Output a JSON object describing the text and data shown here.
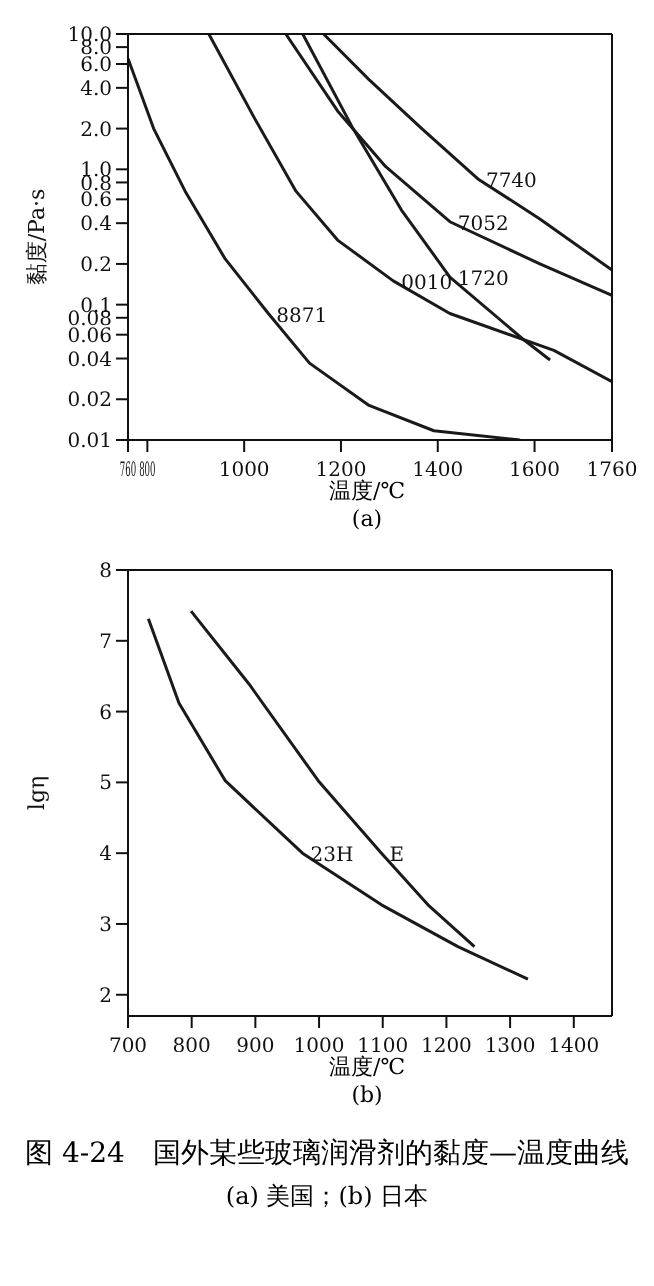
{
  "chart_data": [
    {
      "type": "line",
      "subtitle": "(a)",
      "xlabel": "温度/℃",
      "ylabel": "黏度/Pa·s",
      "log": true,
      "xlim": [
        760,
        1760
      ],
      "ylim": [
        0.01,
        10
      ],
      "xticks": [
        760,
        800,
        1000,
        1200,
        1400,
        1600,
        1760
      ],
      "yticks": [
        0.01,
        0.02,
        0.04,
        0.06,
        0.08,
        0.1,
        0.2,
        0.4,
        {
          "value": 0.6,
          "label": "0.6"
        },
        0.8,
        {
          "value": 1,
          "label": "1.0"
        },
        {
          "value": 2,
          "label": "2.0"
        },
        {
          "value": 4,
          "label": "4.0"
        },
        {
          "value": 6,
          "label": "6.0"
        },
        {
          "value": 8,
          "label": "8.0"
        },
        {
          "value": 10,
          "label": "10.0"
        }
      ],
      "series": [
        {
          "name": "8871",
          "color": "#1a1a1a",
          "x": [
            760,
            813,
            878,
            960,
            1050,
            1135,
            1258,
            1392,
            1570
          ],
          "values": [
            6.6,
            2.0,
            0.69,
            0.22,
            0.086,
            0.037,
            0.018,
            0.0117,
            0.01
          ]
        },
        {
          "name": "0010",
          "color": "#1a1a1a",
          "x": [
            927,
            1021,
            1107,
            1193,
            1308,
            1425,
            1640,
            1760
          ],
          "values": [
            10,
            2.4,
            0.69,
            0.3,
            0.15,
            0.086,
            0.046,
            0.027
          ]
        },
        {
          "name": "7740",
          "color": "#1a1a1a",
          "x": [
            1164,
            1258,
            1367,
            1483,
            1611,
            1760
          ],
          "values": [
            10,
            4.6,
            2.0,
            0.85,
            0.43,
            0.18
          ]
        },
        {
          "name": "7052",
          "color": "#1a1a1a",
          "x": [
            1086,
            1193,
            1292,
            1425,
            1611,
            1760
          ],
          "values": [
            10,
            2.7,
            1.05,
            0.41,
            0.2,
            0.117
          ]
        },
        {
          "name": "1720",
          "color": "#1a1a1a",
          "x": [
            1121,
            1225,
            1325,
            1425,
            1575,
            1632
          ],
          "values": [
            10,
            2.0,
            0.5,
            0.16,
            0.056,
            0.039
          ]
        }
      ]
    },
    {
      "type": "line",
      "subtitle": "(b)",
      "xlabel": "温度/℃",
      "ylabel": "lgη",
      "xlim": [
        700,
        1460
      ],
      "ylim": [
        1.7,
        8
      ],
      "xticks": [
        700,
        800,
        900,
        1000,
        1100,
        1200,
        1300,
        1400
      ],
      "yticks": [
        2,
        3,
        4,
        5,
        6,
        7,
        8
      ],
      "series": [
        {
          "name": "E",
          "color": "#1a1a1a",
          "x": [
            799,
            890,
            999,
            1098,
            1171,
            1244
          ],
          "values": [
            7.42,
            6.39,
            5.02,
            4.0,
            3.27,
            2.68
          ]
        },
        {
          "name": "23H",
          "color": "#1a1a1a",
          "x": [
            732,
            780,
            853,
            974,
            1098,
            1218,
            1328
          ],
          "values": [
            7.31,
            6.12,
            5.02,
            4.0,
            3.27,
            2.68,
            2.22
          ]
        }
      ],
      "annotations": [
        "图 4-24　国外某些玻璃润滑剂的黏度—温度曲线",
        "(a) 美国；(b) 日本"
      ]
    }
  ]
}
